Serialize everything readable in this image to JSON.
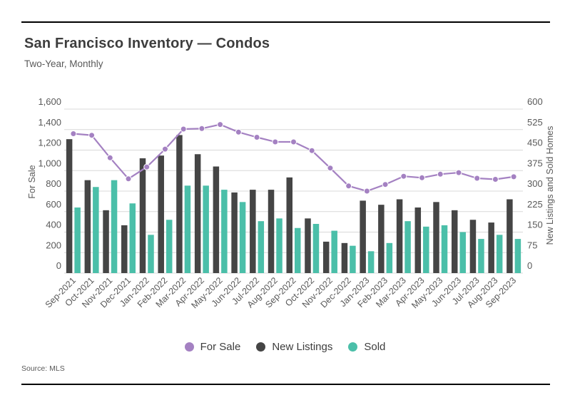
{
  "header": {
    "title": "San Francisco Inventory — Condos",
    "subtitle": "Two-Year, Monthly"
  },
  "source": "Source: MLS",
  "colors": {
    "for_sale": "#a481c2",
    "new_listings": "#454545",
    "sold": "#4bbfa9",
    "gridline": "#d9d9d9",
    "tick_text": "#595959"
  },
  "legend": [
    {
      "label": "For Sale",
      "color": "#a481c2"
    },
    {
      "label": "New Listings",
      "color": "#454545"
    },
    {
      "label": "Sold",
      "color": "#4bbfa9"
    }
  ],
  "chart_data": {
    "type": "bar",
    "subtype": "combo bar + line, dual axis",
    "grid": true,
    "legend_position": "bottom",
    "categories": [
      "Sep-2021",
      "Oct-2021",
      "Nov-2021",
      "Dec-2021",
      "Jan-2022",
      "Feb-2022",
      "Mar-2022",
      "Apr-2022",
      "May-2022",
      "Jun-2022",
      "Jul-2022",
      "Aug-2022",
      "Sep-2022",
      "Oct-2022",
      "Nov-2022",
      "Dec-2022",
      "Jan-2023",
      "Feb-2023",
      "Mar-2023",
      "Apr-2023",
      "May-2023",
      "Jun-2023",
      "Jul-2023",
      "Aug-2023",
      "Sep-2023"
    ],
    "series": [
      {
        "name": "For Sale",
        "chart": "line",
        "axis": "left",
        "color": "#a481c2",
        "values": [
          1360,
          1345,
          1125,
          920,
          1035,
          1210,
          1405,
          1410,
          1450,
          1375,
          1325,
          1280,
          1280,
          1195,
          1025,
          850,
          800,
          865,
          945,
          930,
          965,
          980,
          925,
          915,
          940
        ]
      },
      {
        "name": "New Listings",
        "chart": "bar",
        "axis": "right",
        "color": "#454545",
        "values": [
          490,
          340,
          230,
          175,
          420,
          430,
          505,
          435,
          390,
          295,
          305,
          305,
          350,
          200,
          115,
          110,
          265,
          250,
          270,
          240,
          260,
          230,
          195,
          185,
          270
        ]
      },
      {
        "name": "Sold",
        "chart": "bar",
        "axis": "right",
        "color": "#4bbfa9",
        "values": [
          240,
          315,
          340,
          255,
          140,
          195,
          320,
          320,
          305,
          260,
          190,
          200,
          165,
          180,
          155,
          100,
          80,
          110,
          190,
          170,
          175,
          150,
          125,
          140,
          125
        ]
      }
    ],
    "left_axis": {
      "title": "For Sale",
      "min": 0,
      "max": 1600,
      "step": 200,
      "ticks": [
        "0",
        "200",
        "400",
        "600",
        "800",
        "1,000",
        "1,200",
        "1,400",
        "1,600"
      ]
    },
    "right_axis": {
      "title": "New Listings and Sold Homes",
      "min": 0,
      "max": 600,
      "step": 75,
      "ticks": [
        "0",
        "75",
        "150",
        "225",
        "300",
        "375",
        "450",
        "525",
        "600"
      ]
    }
  }
}
